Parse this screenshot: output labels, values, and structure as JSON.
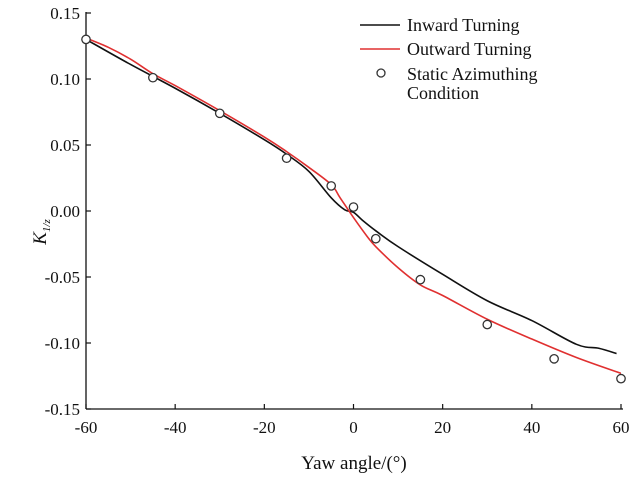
{
  "chart_data": {
    "type": "line",
    "title": "",
    "xlabel": "Yaw angle/(°)",
    "ylabel_main": "K",
    "ylabel_sub": "1/z",
    "xlim": [
      -60,
      60
    ],
    "ylim": [
      -0.15,
      0.15
    ],
    "x_ticks": [
      -60,
      -40,
      -20,
      0,
      20,
      40,
      60
    ],
    "x_tick_labels": [
      "-60",
      "-40",
      "-20",
      "0",
      "20",
      "40",
      "60"
    ],
    "y_ticks": [
      0.15,
      0.1,
      0.05,
      0.0,
      -0.05,
      -0.1,
      -0.15
    ],
    "y_tick_labels": [
      "0.15",
      "0.10",
      "0.05",
      "0.00",
      "-0.05",
      "-0.10",
      "-0.15"
    ],
    "grid": false,
    "legend_position": "top-right",
    "colors": {
      "inward": "#111111",
      "outward": "#e03030",
      "markers": "#333333"
    },
    "series": [
      {
        "name": "Inward Turning",
        "style": "line",
        "x": [
          -60,
          -50,
          -40,
          -30,
          -20,
          -15,
          -10,
          -5,
          -2,
          0,
          2,
          5,
          10,
          20,
          30,
          40,
          50,
          55,
          59
        ],
        "y": [
          0.13,
          0.111,
          0.093,
          0.074,
          0.054,
          0.043,
          0.03,
          0.01,
          0.001,
          -0.001,
          -0.007,
          -0.015,
          -0.027,
          -0.048,
          -0.068,
          -0.083,
          -0.101,
          -0.104,
          -0.108
        ]
      },
      {
        "name": "Outward Turning",
        "style": "line",
        "x": [
          -60,
          -55,
          -50,
          -45,
          -40,
          -30,
          -20,
          -15,
          -10,
          -5,
          -3,
          0,
          3,
          5,
          10,
          15,
          20,
          30,
          40,
          50,
          60
        ],
        "y": [
          0.131,
          0.124,
          0.115,
          0.104,
          0.095,
          0.076,
          0.056,
          0.045,
          0.033,
          0.02,
          0.01,
          -0.005,
          -0.019,
          -0.027,
          -0.043,
          -0.056,
          -0.064,
          -0.082,
          -0.097,
          -0.111,
          -0.123
        ]
      },
      {
        "name": "Static Azimuthing Condition",
        "legend_lines": [
          "Static Azimuthing",
          "Condition"
        ],
        "style": "markers",
        "x": [
          -60,
          -45,
          -30,
          -15,
          -5,
          0,
          5,
          15,
          30,
          45,
          60
        ],
        "y": [
          0.13,
          0.101,
          0.074,
          0.04,
          0.019,
          0.003,
          -0.021,
          -0.052,
          -0.086,
          -0.112,
          -0.127
        ]
      }
    ]
  }
}
